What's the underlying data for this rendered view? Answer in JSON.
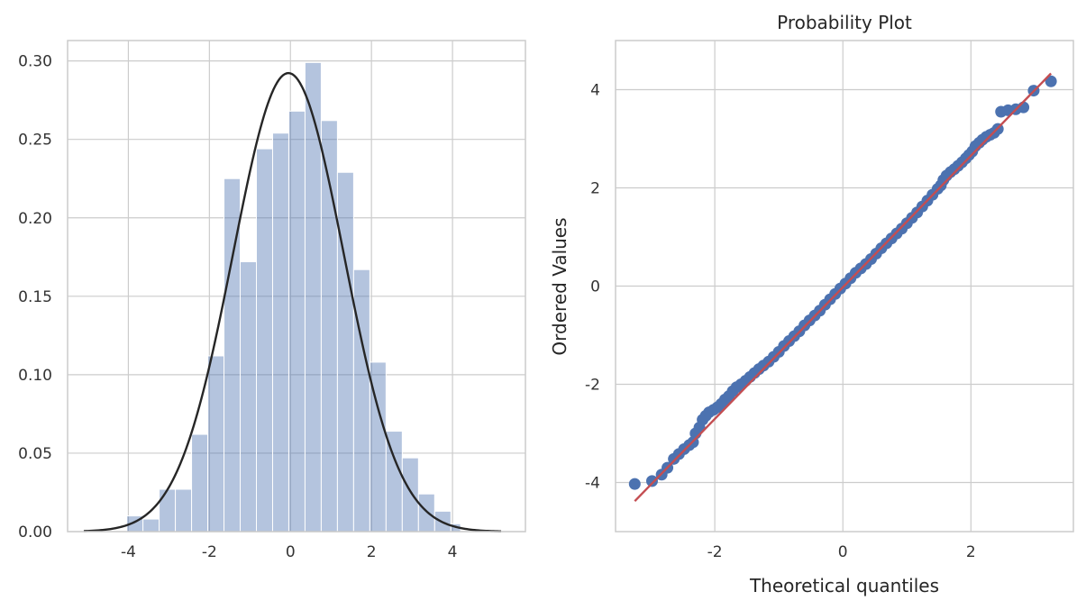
{
  "chart_data": [
    {
      "type": "bar",
      "subtype": "histogram-with-normal-fit",
      "title": "",
      "xlabel": "",
      "ylabel": "",
      "xlim": [
        -5.5,
        5.8
      ],
      "ylim": [
        0,
        0.313
      ],
      "xticks": [
        -4,
        -2,
        0,
        2,
        4
      ],
      "xtick_labels": [
        "-4",
        "-2",
        "0",
        "2",
        "4"
      ],
      "yticks": [
        0,
        0.05,
        0.1,
        0.15,
        0.2,
        0.25,
        0.3
      ],
      "ytick_labels": [
        "0.00",
        "0.05",
        "0.10",
        "0.15",
        "0.20",
        "0.25",
        "0.30"
      ],
      "grid": true,
      "bins": [
        {
          "x0": -4.04,
          "x1": -3.64,
          "value": 0.01
        },
        {
          "x0": -3.64,
          "x1": -3.24,
          "value": 0.008
        },
        {
          "x0": -3.24,
          "x1": -2.84,
          "value": 0.027
        },
        {
          "x0": -2.84,
          "x1": -2.44,
          "value": 0.027
        },
        {
          "x0": -2.44,
          "x1": -2.04,
          "value": 0.062
        },
        {
          "x0": -2.04,
          "x1": -1.64,
          "value": 0.112
        },
        {
          "x0": -1.64,
          "x1": -1.24,
          "value": 0.225
        },
        {
          "x0": -1.24,
          "x1": -0.84,
          "value": 0.172
        },
        {
          "x0": -0.84,
          "x1": -0.44,
          "value": 0.244
        },
        {
          "x0": -0.44,
          "x1": -0.04,
          "value": 0.254
        },
        {
          "x0": -0.04,
          "x1": 0.36,
          "value": 0.268
        },
        {
          "x0": 0.36,
          "x1": 0.76,
          "value": 0.299
        },
        {
          "x0": 0.76,
          "x1": 1.16,
          "value": 0.262
        },
        {
          "x0": 1.16,
          "x1": 1.56,
          "value": 0.229
        },
        {
          "x0": 1.56,
          "x1": 1.96,
          "value": 0.167
        },
        {
          "x0": 1.96,
          "x1": 2.36,
          "value": 0.108
        },
        {
          "x0": 2.36,
          "x1": 2.76,
          "value": 0.064
        },
        {
          "x0": 2.76,
          "x1": 3.16,
          "value": 0.047
        },
        {
          "x0": 3.16,
          "x1": 3.56,
          "value": 0.024
        },
        {
          "x0": 3.56,
          "x1": 3.96,
          "value": 0.013
        },
        {
          "x0": 3.96,
          "x1": 4.2,
          "value": 0.005
        }
      ],
      "fit_curve": {
        "distribution": "normal",
        "mean": -0.05,
        "std": 1.365,
        "x_range": [
          -5.1,
          5.2
        ]
      },
      "colors": {
        "bars": "#4c72b0",
        "bar_opacity": 0.42,
        "curve": "#262626",
        "grid": "#cccccc",
        "frame": "#cccccc"
      }
    },
    {
      "type": "scatter",
      "subtype": "probability-plot",
      "title": "Probability Plot",
      "xlabel": "Theoretical quantiles",
      "ylabel": "Ordered Values",
      "xlim": [
        -3.55,
        3.6
      ],
      "ylim": [
        -5,
        5
      ],
      "xticks": [
        -2,
        0,
        2
      ],
      "xtick_labels": [
        "-2",
        "0",
        "2"
      ],
      "yticks": [
        -4,
        -2,
        0,
        2,
        4
      ],
      "ytick_labels": [
        "-4",
        "-2",
        "0",
        "2",
        "4"
      ],
      "grid": true,
      "fit_line": {
        "x": [
          -3.25,
          3.25
        ],
        "y": [
          -4.38,
          4.33
        ]
      },
      "points": [
        [
          -3.25,
          -4.03
        ],
        [
          -2.98,
          -3.97
        ],
        [
          -2.83,
          -3.84
        ],
        [
          -2.74,
          -3.7
        ],
        [
          -2.64,
          -3.52
        ],
        [
          -2.56,
          -3.42
        ],
        [
          -2.48,
          -3.32
        ],
        [
          -2.4,
          -3.24
        ],
        [
          -2.34,
          -3.18
        ],
        [
          -2.3,
          -3.0
        ],
        [
          -2.24,
          -2.88
        ],
        [
          -2.19,
          -2.72
        ],
        [
          -2.14,
          -2.64
        ],
        [
          -2.09,
          -2.57
        ],
        [
          -2.02,
          -2.52
        ],
        [
          -1.96,
          -2.47
        ],
        [
          -1.9,
          -2.4
        ],
        [
          -1.84,
          -2.31
        ],
        [
          -1.78,
          -2.24
        ],
        [
          -1.72,
          -2.14
        ],
        [
          -1.66,
          -2.06
        ],
        [
          -1.59,
          -2.0
        ],
        [
          -1.52,
          -1.93
        ],
        [
          -1.45,
          -1.85
        ],
        [
          -1.38,
          -1.77
        ],
        [
          -1.31,
          -1.69
        ],
        [
          -1.24,
          -1.62
        ],
        [
          -1.16,
          -1.54
        ],
        [
          -1.08,
          -1.44
        ],
        [
          -1.0,
          -1.34
        ],
        [
          -0.92,
          -1.22
        ],
        [
          -0.84,
          -1.12
        ],
        [
          -0.76,
          -1.02
        ],
        [
          -0.68,
          -0.92
        ],
        [
          -0.6,
          -0.8
        ],
        [
          -0.52,
          -0.7
        ],
        [
          -0.44,
          -0.6
        ],
        [
          -0.36,
          -0.5
        ],
        [
          -0.28,
          -0.38
        ],
        [
          -0.2,
          -0.27
        ],
        [
          -0.12,
          -0.16
        ],
        [
          -0.04,
          -0.05
        ],
        [
          0.04,
          0.05
        ],
        [
          0.12,
          0.16
        ],
        [
          0.2,
          0.27
        ],
        [
          0.28,
          0.36
        ],
        [
          0.36,
          0.45
        ],
        [
          0.44,
          0.55
        ],
        [
          0.52,
          0.66
        ],
        [
          0.6,
          0.77
        ],
        [
          0.68,
          0.87
        ],
        [
          0.76,
          0.97
        ],
        [
          0.84,
          1.07
        ],
        [
          0.92,
          1.17
        ],
        [
          1.0,
          1.28
        ],
        [
          1.08,
          1.39
        ],
        [
          1.16,
          1.5
        ],
        [
          1.24,
          1.62
        ],
        [
          1.32,
          1.74
        ],
        [
          1.4,
          1.86
        ],
        [
          1.48,
          1.98
        ],
        [
          1.53,
          2.05
        ],
        [
          1.57,
          2.16
        ],
        [
          1.62,
          2.25
        ],
        [
          1.68,
          2.32
        ],
        [
          1.74,
          2.38
        ],
        [
          1.8,
          2.45
        ],
        [
          1.86,
          2.52
        ],
        [
          1.92,
          2.6
        ],
        [
          1.97,
          2.67
        ],
        [
          2.02,
          2.74
        ],
        [
          2.07,
          2.85
        ],
        [
          2.13,
          2.92
        ],
        [
          2.18,
          2.98
        ],
        [
          2.24,
          3.04
        ],
        [
          2.3,
          3.08
        ],
        [
          2.36,
          3.12
        ],
        [
          2.42,
          3.2
        ],
        [
          2.47,
          3.55
        ],
        [
          2.58,
          3.58
        ],
        [
          2.7,
          3.6
        ],
        [
          2.82,
          3.64
        ],
        [
          2.98,
          3.98
        ],
        [
          3.25,
          4.17
        ]
      ],
      "colors": {
        "points": "#4c72b0",
        "line": "#c44e52",
        "grid": "#cccccc",
        "frame": "#cccccc"
      }
    }
  ]
}
